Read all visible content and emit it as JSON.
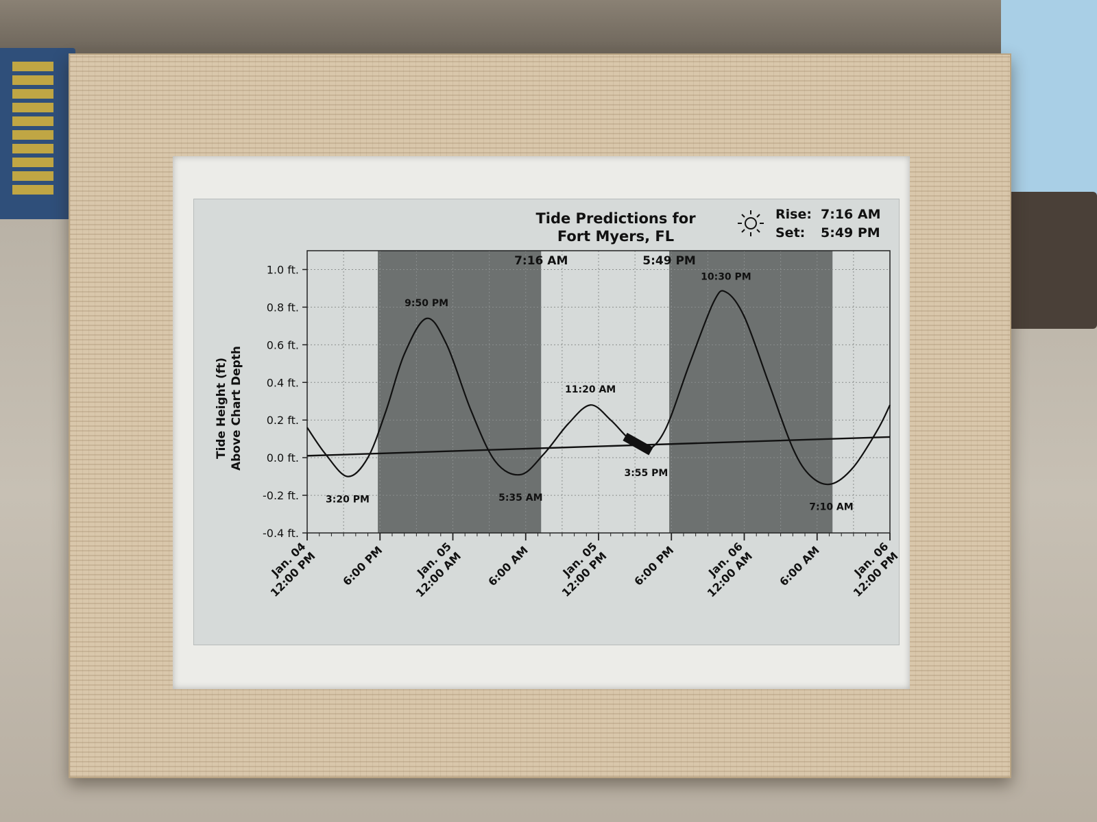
{
  "display": {
    "title_line1": "Tide Predictions for",
    "title_line2": "Fort Myers, FL",
    "sun_icon": "sun-icon",
    "sunrise_label": "Rise:",
    "sunrise_time": "7:16 AM",
    "sunset_label": "Set:",
    "sunset_time": "5:49 PM",
    "ylabel_line1": "Tide Height (ft)",
    "ylabel_line2": "Above Chart Depth"
  },
  "chart_data": {
    "type": "line",
    "title": "Tide Predictions for Fort Myers, FL",
    "ylabel": "Tide Height (ft) Above Chart Depth",
    "xlim_hours": [
      0,
      48
    ],
    "ylim": [
      -0.4,
      1.1
    ],
    "yticks": [
      1.0,
      0.8,
      0.6,
      0.4,
      0.2,
      0.0,
      -0.2,
      -0.4
    ],
    "ytick_labels": [
      "1.0 ft.",
      "0.8 ft.",
      "0.6 ft.",
      "0.4 ft.",
      "0.2 ft.",
      "0.0 ft.",
      "-0.2 ft.",
      "-0.4 ft."
    ],
    "xticks": [
      {
        "hour": 0,
        "line1": "Jan. 04",
        "line2": "12:00 PM"
      },
      {
        "hour": 6,
        "line1": "6:00 PM",
        "line2": ""
      },
      {
        "hour": 12,
        "line1": "Jan. 05",
        "line2": "12:00 AM"
      },
      {
        "hour": 18,
        "line1": "6:00 AM",
        "line2": ""
      },
      {
        "hour": 24,
        "line1": "Jan. 05",
        "line2": "12:00 PM"
      },
      {
        "hour": 30,
        "line1": "6:00 PM",
        "line2": ""
      },
      {
        "hour": 36,
        "line1": "Jan. 06",
        "line2": "12:00 AM"
      },
      {
        "hour": 42,
        "line1": "6:00 AM",
        "line2": ""
      },
      {
        "hour": 48,
        "line1": "Jan. 06",
        "line2": "12:00 PM"
      }
    ],
    "night_periods": [
      [
        5.82,
        19.27
      ],
      [
        29.82,
        43.27
      ]
    ],
    "sun_event_labels": [
      {
        "hour": 19.27,
        "label": "7:16 AM"
      },
      {
        "hour": 29.82,
        "label": "5:49 PM"
      }
    ],
    "series": [
      {
        "points": [
          [
            0,
            0.16
          ],
          [
            1.5,
            0.02
          ],
          [
            3.33,
            -0.1
          ],
          [
            5,
            0.0
          ],
          [
            6.5,
            0.25
          ],
          [
            8,
            0.55
          ],
          [
            9.83,
            0.74
          ],
          [
            11.5,
            0.6
          ],
          [
            13.5,
            0.25
          ],
          [
            15.5,
            -0.02
          ],
          [
            17.58,
            -0.09
          ],
          [
            19.5,
            0.02
          ],
          [
            21.5,
            0.18
          ],
          [
            23.33,
            0.28
          ],
          [
            25,
            0.2
          ],
          [
            26.5,
            0.1
          ],
          [
            27.92,
            0.04
          ],
          [
            29.5,
            0.15
          ],
          [
            31.5,
            0.5
          ],
          [
            33.5,
            0.83
          ],
          [
            34.5,
            0.88
          ],
          [
            36,
            0.75
          ],
          [
            38,
            0.4
          ],
          [
            40,
            0.05
          ],
          [
            41.5,
            -0.1
          ],
          [
            43.17,
            -0.14
          ],
          [
            45,
            -0.05
          ],
          [
            47,
            0.15
          ],
          [
            48,
            0.28
          ]
        ]
      }
    ],
    "mean_line": {
      "start": 0.01,
      "end": 0.11
    },
    "current_marker_hours": [
      26.5,
      28.0
    ],
    "extrema_labels": [
      {
        "hour": 3.33,
        "value": -0.1,
        "label": "3:20 PM",
        "kind": "low"
      },
      {
        "hour": 9.83,
        "value": 0.74,
        "label": "9:50 PM",
        "kind": "high"
      },
      {
        "hour": 17.58,
        "value": -0.09,
        "label": "5:35 AM",
        "kind": "low"
      },
      {
        "hour": 23.33,
        "value": 0.28,
        "label": "11:20 AM",
        "kind": "high"
      },
      {
        "hour": 27.92,
        "value": 0.04,
        "label": "3:55 PM",
        "kind": "low"
      },
      {
        "hour": 34.5,
        "value": 0.88,
        "label": "10:30 PM",
        "kind": "high"
      },
      {
        "hour": 43.17,
        "value": -0.14,
        "label": "7:10 AM",
        "kind": "low"
      }
    ]
  }
}
